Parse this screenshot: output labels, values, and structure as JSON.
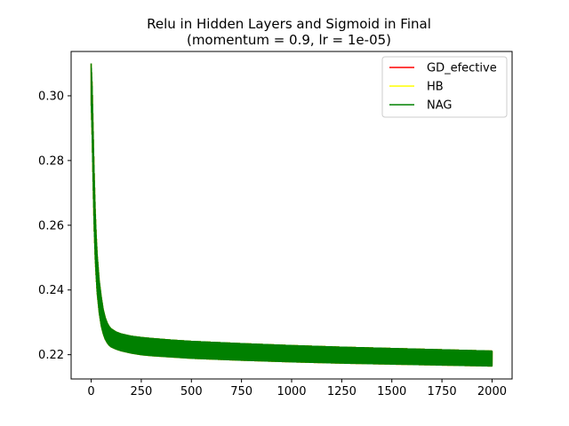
{
  "chart_data": {
    "type": "line",
    "title_line1": "Relu in Hidden Layers and Sigmoid in Final",
    "title_line2": "(momentum = 0.9, lr = 1e-05)",
    "xlabel": "",
    "ylabel": "",
    "xlim": [
      -100,
      2100
    ],
    "ylim": [
      0.2125,
      0.3137
    ],
    "xticks": [
      0,
      250,
      500,
      750,
      1000,
      1250,
      1500,
      1750,
      2000
    ],
    "yticks": [
      0.22,
      0.24,
      0.26,
      0.28,
      0.3
    ],
    "ytick_labels": [
      "0.22",
      "0.24",
      "0.26",
      "0.28",
      "0.30"
    ],
    "grid": false,
    "legend_position": "top-right",
    "series": [
      {
        "name": "GD_efective",
        "color": "#ff0000",
        "x": [
          0,
          5,
          10,
          15,
          20,
          25,
          30,
          40,
          50,
          60,
          70,
          80,
          90,
          100,
          125,
          150,
          200,
          250,
          300,
          400,
          500,
          750,
          1000,
          1250,
          1500,
          1750,
          2000
        ],
        "upper": [
          0.31,
          0.303,
          0.289,
          0.276,
          0.265,
          0.257,
          0.251,
          0.243,
          0.238,
          0.234,
          0.2315,
          0.2298,
          0.2287,
          0.228,
          0.227,
          0.2264,
          0.2257,
          0.2253,
          0.225,
          0.2245,
          0.2241,
          0.2234,
          0.2228,
          0.2223,
          0.2219,
          0.2215,
          0.2211
        ],
        "lower": [
          0.298,
          0.287,
          0.272,
          0.259,
          0.25,
          0.244,
          0.239,
          0.233,
          0.229,
          0.2265,
          0.2248,
          0.2237,
          0.2229,
          0.2224,
          0.2217,
          0.2212,
          0.2205,
          0.22,
          0.2197,
          0.2193,
          0.2189,
          0.2183,
          0.2178,
          0.2174,
          0.2171,
          0.2168,
          0.2165
        ]
      },
      {
        "name": "HB",
        "color": "#ffff00",
        "x": [
          0,
          5,
          10,
          15,
          20,
          25,
          30,
          40,
          50,
          60,
          70,
          80,
          90,
          100,
          125,
          150,
          200,
          250,
          300,
          400,
          500,
          750,
          1000,
          1250,
          1500,
          1750,
          2000
        ],
        "upper": [
          0.31,
          0.303,
          0.289,
          0.276,
          0.265,
          0.257,
          0.251,
          0.243,
          0.238,
          0.234,
          0.2315,
          0.2298,
          0.2287,
          0.228,
          0.227,
          0.2264,
          0.2257,
          0.2253,
          0.225,
          0.2245,
          0.2241,
          0.2234,
          0.2228,
          0.2223,
          0.2219,
          0.2215,
          0.2211
        ],
        "lower": [
          0.298,
          0.287,
          0.272,
          0.259,
          0.25,
          0.244,
          0.239,
          0.233,
          0.229,
          0.2265,
          0.2248,
          0.2237,
          0.2229,
          0.2224,
          0.2217,
          0.2212,
          0.2205,
          0.22,
          0.2197,
          0.2193,
          0.2189,
          0.2183,
          0.2178,
          0.2174,
          0.2171,
          0.2168,
          0.2165
        ]
      },
      {
        "name": "NAG",
        "color": "#008000",
        "x": [
          0,
          5,
          10,
          15,
          20,
          25,
          30,
          40,
          50,
          60,
          70,
          80,
          90,
          100,
          125,
          150,
          200,
          250,
          300,
          400,
          500,
          750,
          1000,
          1250,
          1500,
          1750,
          2000
        ],
        "upper": [
          0.31,
          0.303,
          0.289,
          0.276,
          0.265,
          0.257,
          0.251,
          0.243,
          0.238,
          0.234,
          0.2315,
          0.2298,
          0.2287,
          0.228,
          0.227,
          0.2264,
          0.2257,
          0.2253,
          0.225,
          0.2245,
          0.2241,
          0.2234,
          0.2228,
          0.2223,
          0.2219,
          0.2215,
          0.2211
        ],
        "lower": [
          0.298,
          0.287,
          0.272,
          0.259,
          0.25,
          0.244,
          0.239,
          0.233,
          0.229,
          0.2265,
          0.2248,
          0.2237,
          0.2229,
          0.2224,
          0.2217,
          0.2212,
          0.2205,
          0.22,
          0.2197,
          0.2193,
          0.2189,
          0.2183,
          0.2178,
          0.2174,
          0.2171,
          0.2168,
          0.2165
        ]
      }
    ]
  }
}
